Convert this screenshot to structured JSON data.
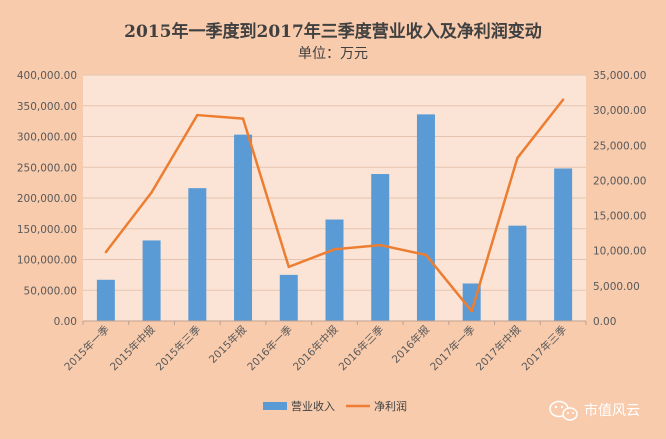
{
  "chart_data": {
    "type": "bar",
    "title": "2015年一季度到2017年三季度营业收入及净利润变动",
    "subtitle": "单位：万元",
    "categories": [
      "2015年一季",
      "2015年中报",
      "2015年三季",
      "2015年报",
      "2016年一季",
      "2016年中报",
      "2016年三季",
      "2016年报",
      "2017年一季",
      "2017年中报",
      "2017年三季"
    ],
    "series": [
      {
        "name": "营业收入",
        "type": "bar",
        "axis": "left",
        "color": "#5b9bd5",
        "values": [
          67000,
          131000,
          216000,
          303000,
          75000,
          165000,
          239000,
          336000,
          61000,
          155000,
          248000
        ]
      },
      {
        "name": "净利润",
        "type": "line",
        "axis": "right",
        "color": "#ed7d31",
        "values": [
          9800,
          18300,
          29300,
          28800,
          7700,
          10200,
          10800,
          9400,
          1400,
          23200,
          31500
        ]
      }
    ],
    "y_left": {
      "min": 0,
      "max": 400000,
      "step": 50000,
      "tick_labels": [
        "0.00",
        "50,000.00",
        "100,000.00",
        "150,000.00",
        "200,000.00",
        "250,000.00",
        "300,000.00",
        "350,000.00",
        "400,000.00"
      ]
    },
    "y_right": {
      "min": 0,
      "max": 35000,
      "step": 5000,
      "tick_labels": [
        "0.00",
        "5,000.00",
        "10,000.00",
        "15,000.00",
        "20,000.00",
        "25,000.00",
        "30,000.00",
        "35,000.00"
      ]
    },
    "grid": true,
    "legend": {
      "position": "bottom",
      "entries": [
        "营业收入",
        "净利润"
      ]
    }
  },
  "watermark": {
    "text": "市值风云",
    "icon": "wechat-icon"
  },
  "colors": {
    "background": "#f8cbad",
    "plot_background": "#fbe4d5",
    "grid": "#e4c4b0"
  }
}
